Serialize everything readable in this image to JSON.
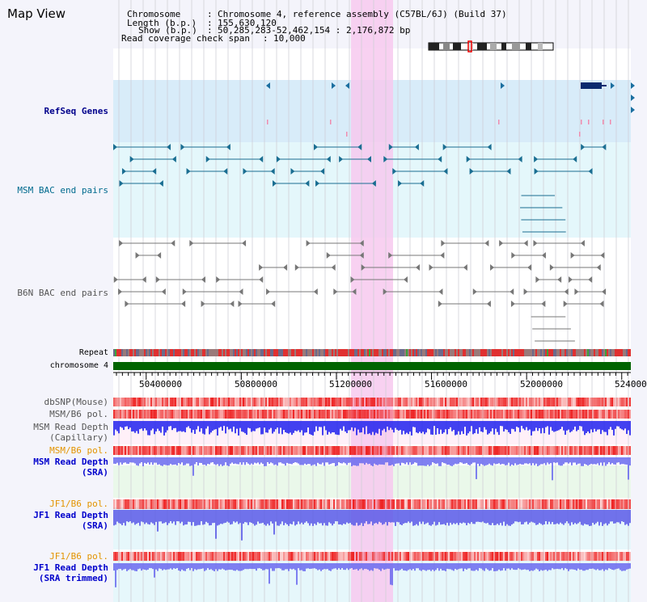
{
  "view": {
    "title": "Map View",
    "chromosome_key": "Chromosome",
    "chromosome_value": "Chromosome 4, reference assembly (C57BL/6J) (Build 37)",
    "length_key": "Length (b.p.)",
    "length_value": "155,630,120",
    "show_key": "Show (b.p.)",
    "show_value": "50,285,283-52,462,154 : 2,176,872 bp",
    "coverage_key": "Read coverage check span",
    "coverage_value": "10,000"
  },
  "tracks": {
    "refseq": "RefSeq Genes",
    "msm_bac": "MSM BAC end pairs",
    "b6n_bac": "B6N BAC end pairs",
    "repeat": "Repeat",
    "chromosome": "chromosome 4",
    "dbsnp": "dbSNP(Mouse)",
    "msm_b6_pol": "MSM/B6 pol.",
    "msm_depth_cap_1": "MSM Read Depth",
    "msm_depth_cap_2": "(Capillary)",
    "msm_b6_pol_2": "MSM/B6 pol.",
    "msm_depth_sra_1": "MSM Read Depth",
    "msm_depth_sra_2": "(SRA)",
    "jf1_b6_pol": "JF1/B6 pol.",
    "jf1_depth_sra_1": "JF1 Read Depth",
    "jf1_depth_sra_2": "(SRA)",
    "jf1_b6_pol_2": "JF1/B6 pol.",
    "jf1_depth_trim_1": "JF1 Read Depth",
    "jf1_depth_trim_2": "(SRA trimmed)"
  },
  "axis": {
    "ticks": [
      "50400000",
      "50800000",
      "51200000",
      "51600000",
      "52000000",
      "524000"
    ]
  },
  "colors": {
    "highlight": "#f7c9ee",
    "refseq_bg": "#d8ecf9",
    "msm_bg": "#e4f7fb",
    "chromosome": "#006400",
    "depth": "#2222ee",
    "pol_red": "#ee2222",
    "label_navy": "#00008b",
    "label_orange": "#e39400"
  }
}
